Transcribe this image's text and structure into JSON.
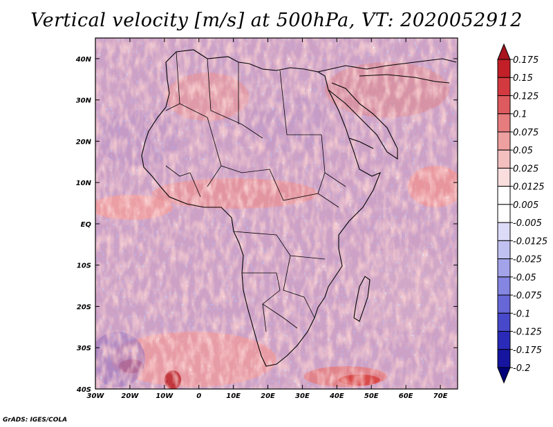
{
  "title": "Vertical velocity [m/s] at 500hPa, VT: 2020052912",
  "credit": "GrADS: IGES/COLA",
  "map": {
    "lon_range": [
      -30,
      75
    ],
    "lat_range": [
      -40,
      45
    ],
    "lon_ticks": [
      {
        "value": -30,
        "label": "30W"
      },
      {
        "value": -20,
        "label": "20W"
      },
      {
        "value": -10,
        "label": "10W"
      },
      {
        "value": 0,
        "label": "0"
      },
      {
        "value": 10,
        "label": "10E"
      },
      {
        "value": 20,
        "label": "20E"
      },
      {
        "value": 30,
        "label": "30E"
      },
      {
        "value": 40,
        "label": "40E"
      },
      {
        "value": 50,
        "label": "50E"
      },
      {
        "value": 60,
        "label": "60E"
      },
      {
        "value": 70,
        "label": "70E"
      }
    ],
    "lat_ticks": [
      {
        "value": 40,
        "label": "40N"
      },
      {
        "value": 30,
        "label": "30N"
      },
      {
        "value": 20,
        "label": "20N"
      },
      {
        "value": 10,
        "label": "10N"
      },
      {
        "value": 0,
        "label": "EQ"
      },
      {
        "value": -10,
        "label": "10S"
      },
      {
        "value": -20,
        "label": "20S"
      },
      {
        "value": -30,
        "label": "30S"
      },
      {
        "value": -40,
        "label": "40S"
      }
    ]
  },
  "colorbar": {
    "labels": [
      "0.175",
      "0.15",
      "0.125",
      "0.1",
      "0.075",
      "0.05",
      "0.025",
      "0.0125",
      "0.005",
      "-0.005",
      "-0.0125",
      "-0.025",
      "-0.05",
      "-0.075",
      "-0.1",
      "-0.125",
      "-0.175",
      "-0.2"
    ],
    "colors": [
      "#a8141e",
      "#c21f28",
      "#d33a40",
      "#dd5a5e",
      "#e67c7e",
      "#ee9f9f",
      "#f4c0bf",
      "#f9dedd",
      "#ffffff",
      "#ffffff",
      "#dcdcf8",
      "#c1c1f1",
      "#a3a3ea",
      "#8585e2",
      "#6767d8",
      "#4848cb",
      "#2a2ab8",
      "#1515a0",
      "#00007a"
    ]
  }
}
